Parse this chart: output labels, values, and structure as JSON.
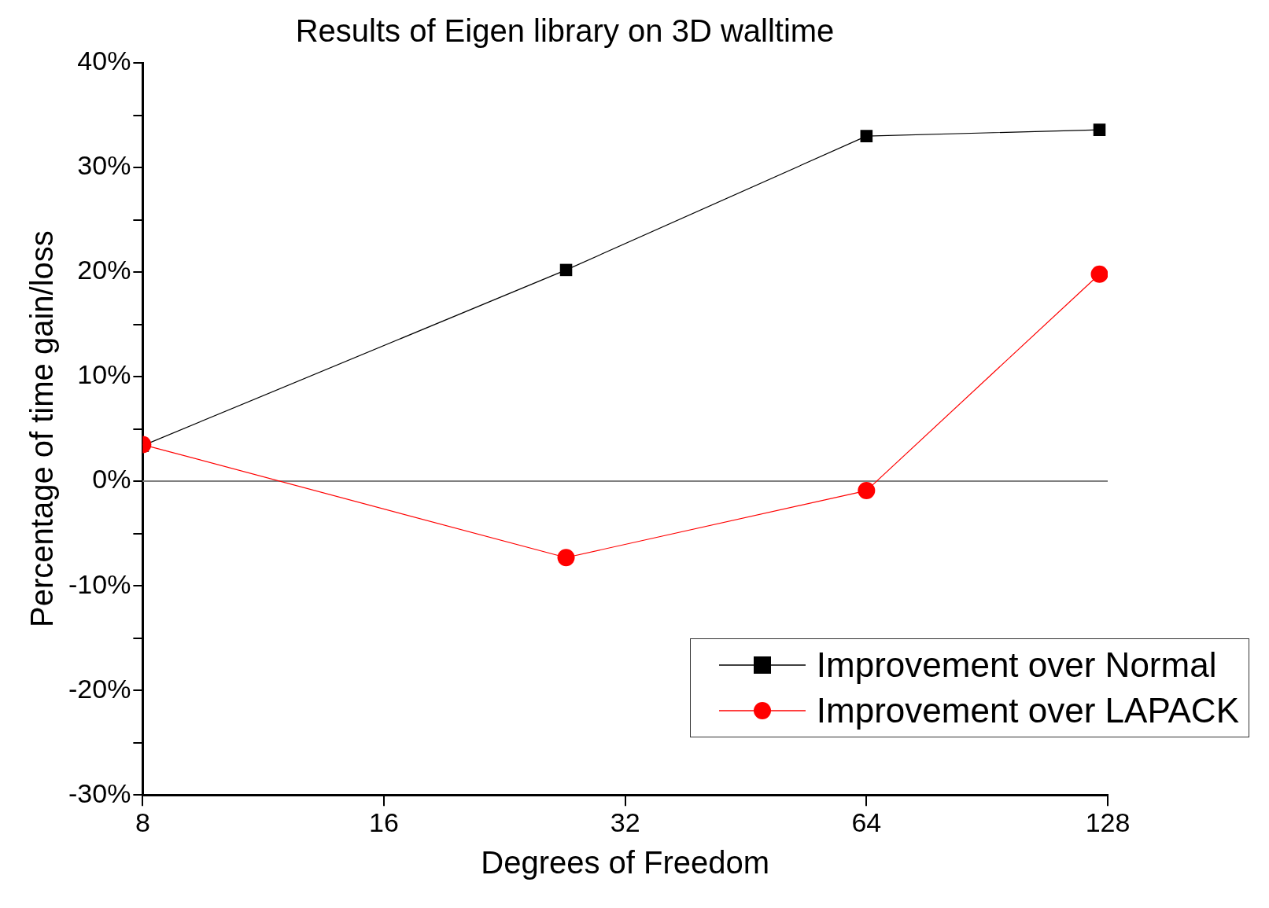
{
  "chart_data": {
    "type": "line",
    "title": "Results of Eigen library on 3D walltime",
    "xlabel": "Degrees of Freedom",
    "ylabel": "Percentage of time gain/loss",
    "x": [
      8,
      27,
      64,
      125
    ],
    "series": [
      {
        "name": "Improvement over Normal",
        "color": "#000000",
        "marker": "square",
        "values": [
          3.4,
          20.2,
          33.0,
          33.6
        ]
      },
      {
        "name": "Improvement over LAPACK",
        "color": "#ff0000",
        "marker": "circle",
        "values": [
          3.5,
          -7.3,
          -0.9,
          19.8
        ]
      }
    ],
    "log": "x",
    "xlim": [
      8,
      128
    ],
    "xticks": [
      8,
      16,
      32,
      64,
      128
    ],
    "ylim": [
      -30,
      40
    ],
    "yticks": [
      {
        "value": -30,
        "label": "-30%"
      },
      {
        "value": -25,
        "label": null
      },
      {
        "value": -20,
        "label": "-20%"
      },
      {
        "value": -15,
        "label": null
      },
      {
        "value": -10,
        "label": "-10%"
      },
      {
        "value": -5,
        "label": null
      },
      {
        "value": 0,
        "label": "0%"
      },
      {
        "value": 5,
        "label": null
      },
      {
        "value": 10,
        "label": "10%"
      },
      {
        "value": 15,
        "label": null
      },
      {
        "value": 20,
        "label": "20%"
      },
      {
        "value": 25,
        "label": null
      },
      {
        "value": 30,
        "label": "30%"
      },
      {
        "value": 35,
        "label": null
      },
      {
        "value": 40,
        "label": "40%"
      }
    ],
    "ref_lines": [
      {
        "axis": "y",
        "value": 0,
        "color": "#808080"
      }
    ],
    "grid": false,
    "legend": "bottom right",
    "line_style": "solid"
  }
}
